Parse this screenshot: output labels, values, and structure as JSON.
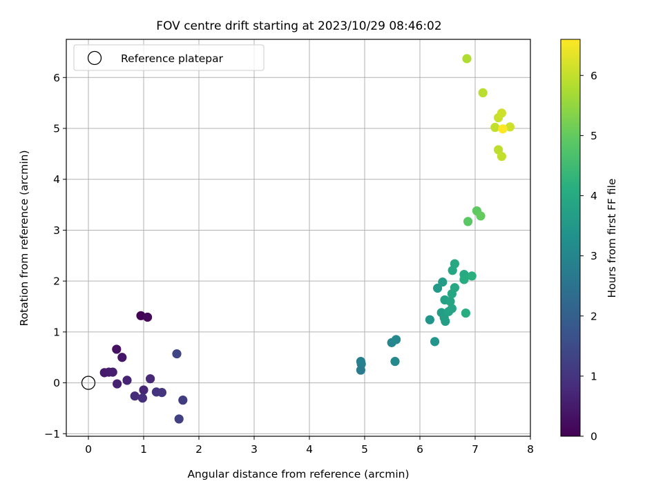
{
  "chart_data": {
    "type": "scatter",
    "title": "FOV centre drift starting at 2023/10/29 08:46:02",
    "xlabel": "Angular distance from reference (arcmin)",
    "ylabel": "Rotation from reference (arcmin)",
    "xlim": [
      -0.4,
      8.0
    ],
    "ylim": [
      -1.05,
      6.75
    ],
    "xticks": [
      "0",
      "1",
      "2",
      "3",
      "4",
      "5",
      "6",
      "7",
      "8"
    ],
    "yticks": [
      "−1",
      "0",
      "1",
      "2",
      "3",
      "4",
      "5",
      "6"
    ],
    "grid": true,
    "legend": {
      "placement": "top-left",
      "entries": [
        "Reference platepar"
      ]
    },
    "reference_point": {
      "x": 0,
      "y": 0
    },
    "colorbar": {
      "label": "Hours from first FF file",
      "colormap": "viridis",
      "range": [
        0,
        6.6
      ],
      "ticks": [
        "0",
        "1",
        "2",
        "3",
        "4",
        "5",
        "6"
      ]
    },
    "points": [
      {
        "x": 0.95,
        "y": 1.32,
        "c": 0.05
      },
      {
        "x": 1.07,
        "y": 1.29,
        "c": 0.15
      },
      {
        "x": 0.51,
        "y": 0.66,
        "c": 0.3
      },
      {
        "x": 0.61,
        "y": 0.5,
        "c": 0.4
      },
      {
        "x": 0.29,
        "y": 0.2,
        "c": 0.45
      },
      {
        "x": 0.37,
        "y": 0.21,
        "c": 0.5
      },
      {
        "x": 0.44,
        "y": 0.21,
        "c": 0.55
      },
      {
        "x": 0.52,
        "y": -0.02,
        "c": 0.6
      },
      {
        "x": 0.7,
        "y": 0.05,
        "c": 0.65
      },
      {
        "x": 1.12,
        "y": 0.08,
        "c": 0.75
      },
      {
        "x": 1.0,
        "y": -0.14,
        "c": 0.7
      },
      {
        "x": 0.84,
        "y": -0.26,
        "c": 0.8
      },
      {
        "x": 0.98,
        "y": -0.3,
        "c": 0.9
      },
      {
        "x": 1.23,
        "y": -0.18,
        "c": 0.95
      },
      {
        "x": 1.33,
        "y": -0.19,
        "c": 1.0
      },
      {
        "x": 1.71,
        "y": -0.34,
        "c": 1.15
      },
      {
        "x": 1.64,
        "y": -0.71,
        "c": 1.25
      },
      {
        "x": 1.6,
        "y": 0.57,
        "c": 1.35
      },
      {
        "x": 4.93,
        "y": 0.42,
        "c": 2.8
      },
      {
        "x": 4.94,
        "y": 0.37,
        "c": 2.85
      },
      {
        "x": 4.93,
        "y": 0.25,
        "c": 2.75
      },
      {
        "x": 5.49,
        "y": 0.79,
        "c": 3.0
      },
      {
        "x": 5.57,
        "y": 0.85,
        "c": 3.05
      },
      {
        "x": 5.55,
        "y": 0.42,
        "c": 3.1
      },
      {
        "x": 6.18,
        "y": 1.24,
        "c": 3.4
      },
      {
        "x": 6.27,
        "y": 0.81,
        "c": 3.45
      },
      {
        "x": 6.32,
        "y": 1.86,
        "c": 3.55
      },
      {
        "x": 6.41,
        "y": 1.98,
        "c": 3.6
      },
      {
        "x": 6.39,
        "y": 1.38,
        "c": 3.65
      },
      {
        "x": 6.44,
        "y": 1.28,
        "c": 3.7
      },
      {
        "x": 6.46,
        "y": 1.21,
        "c": 3.7
      },
      {
        "x": 6.45,
        "y": 1.63,
        "c": 3.75
      },
      {
        "x": 6.52,
        "y": 1.4,
        "c": 3.8
      },
      {
        "x": 6.55,
        "y": 1.6,
        "c": 3.85
      },
      {
        "x": 6.58,
        "y": 1.46,
        "c": 3.85
      },
      {
        "x": 6.58,
        "y": 1.75,
        "c": 3.9
      },
      {
        "x": 6.63,
        "y": 1.87,
        "c": 3.95
      },
      {
        "x": 6.59,
        "y": 2.21,
        "c": 3.9
      },
      {
        "x": 6.63,
        "y": 2.34,
        "c": 3.95
      },
      {
        "x": 6.8,
        "y": 2.13,
        "c": 4.0
      },
      {
        "x": 6.8,
        "y": 2.03,
        "c": 4.05
      },
      {
        "x": 6.83,
        "y": 1.37,
        "c": 4.1
      },
      {
        "x": 6.94,
        "y": 2.1,
        "c": 4.15
      },
      {
        "x": 6.87,
        "y": 3.17,
        "c": 4.9
      },
      {
        "x": 7.03,
        "y": 3.38,
        "c": 4.95
      },
      {
        "x": 7.1,
        "y": 3.28,
        "c": 5.0
      },
      {
        "x": 6.85,
        "y": 6.37,
        "c": 5.8
      },
      {
        "x": 7.14,
        "y": 5.7,
        "c": 5.9
      },
      {
        "x": 7.36,
        "y": 5.02,
        "c": 6.0
      },
      {
        "x": 7.42,
        "y": 5.21,
        "c": 6.05
      },
      {
        "x": 7.48,
        "y": 5.3,
        "c": 6.1
      },
      {
        "x": 7.42,
        "y": 4.58,
        "c": 5.95
      },
      {
        "x": 7.48,
        "y": 4.45,
        "c": 6.0
      },
      {
        "x": 7.63,
        "y": 5.03,
        "c": 6.1
      },
      {
        "x": 7.5,
        "y": 4.99,
        "c": 6.6
      }
    ]
  }
}
